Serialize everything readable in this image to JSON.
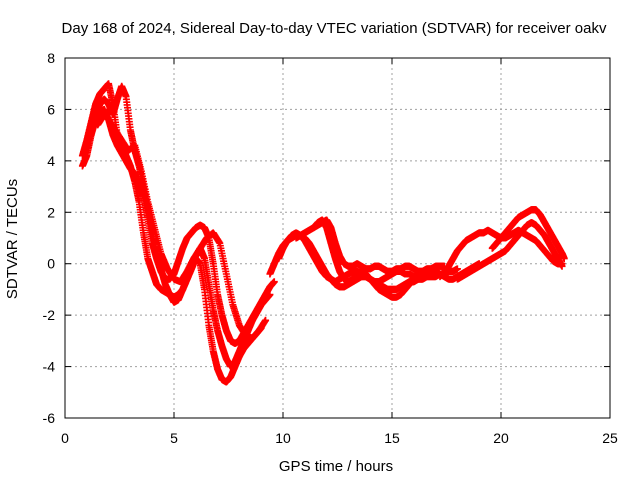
{
  "chart_data": {
    "type": "scatter",
    "title": "Day 168 of 2024, Sidereal Day-to-day VTEC variation (SDTVAR) for receiver oakv",
    "xlabel": "GPS time / hours",
    "ylabel": "SDTVAR / TECUs",
    "xlim": [
      0,
      25
    ],
    "ylim": [
      -6,
      8
    ],
    "xticks": [
      "0",
      "5",
      "10",
      "15",
      "20",
      "25"
    ],
    "yticks": [
      "-6",
      "-4",
      "-2",
      "0",
      "2",
      "4",
      "6",
      "8"
    ],
    "grid": true,
    "marker": "+",
    "color": "#ff0000",
    "series": [
      {
        "x": [
          0.8,
          1.0,
          1.2,
          1.4,
          1.6,
          1.8,
          2.0,
          2.2,
          2.4,
          2.6,
          2.8,
          3.0,
          3.2,
          3.4,
          3.6,
          3.8,
          4.0,
          4.2,
          4.4,
          4.6,
          4.8,
          5.0,
          5.2,
          5.4,
          5.6,
          5.8,
          6.0,
          6.2,
          6.4,
          6.6,
          6.8,
          7.0,
          7.2,
          7.4,
          7.6,
          7.8,
          8.0,
          8.2,
          8.4,
          8.6,
          8.8,
          9.0
        ],
        "y": [
          4.2,
          4.8,
          5.5,
          6.2,
          6.6,
          6.8,
          7.0,
          6.2,
          5.0,
          4.6,
          4.2,
          3.8,
          3.2,
          2.4,
          1.2,
          0.2,
          -0.3,
          -0.8,
          -1.0,
          -1.1,
          -1.2,
          -1.3,
          -1.2,
          -1.0,
          -0.6,
          -0.2,
          0.2,
          0.0,
          -1.0,
          -2.4,
          -3.4,
          -4.1,
          -4.5,
          -4.6,
          -4.4,
          -4.0,
          -3.6,
          -3.3,
          -3.1,
          -2.9,
          -2.7,
          -2.5
        ]
      },
      {
        "x": [
          0.8,
          1.0,
          1.2,
          1.4,
          1.6,
          1.8,
          2.0,
          2.2,
          2.4,
          2.6,
          2.8,
          3.0,
          3.2,
          3.4,
          3.6,
          3.8,
          4.0,
          4.2,
          4.4,
          4.6,
          4.8,
          5.0,
          5.2,
          5.4,
          5.6,
          5.8,
          6.0,
          6.2,
          6.4,
          6.6,
          6.8,
          7.0,
          7.2,
          7.4,
          7.6,
          7.8,
          8.0,
          8.2,
          8.4,
          8.6,
          8.8,
          9.0,
          9.2,
          9.4,
          9.6
        ],
        "y": [
          3.8,
          4.2,
          5.0,
          5.6,
          5.9,
          6.0,
          5.6,
          5.0,
          4.6,
          4.3,
          4.0,
          3.7,
          3.5,
          3.1,
          2.6,
          1.8,
          0.8,
          0.2,
          -0.3,
          -0.6,
          -0.6,
          -0.4,
          0.1,
          0.6,
          1.0,
          1.2,
          1.4,
          1.5,
          1.4,
          1.0,
          0.0,
          -1.2,
          -2.0,
          -2.6,
          -3.0,
          -3.1,
          -3.0,
          -2.7,
          -2.4,
          -2.1,
          -1.8,
          -1.5,
          -1.2,
          -0.9,
          -0.7
        ]
      },
      {
        "x": [
          1.0,
          1.2,
          1.4,
          1.6,
          1.8,
          2.0,
          2.2,
          2.4,
          2.6,
          2.8,
          3.0,
          3.2,
          3.4,
          3.6,
          3.8,
          4.0,
          4.2,
          4.4,
          4.6,
          4.8,
          5.0,
          5.2,
          5.4,
          5.6,
          5.8,
          6.0,
          6.2,
          6.4,
          6.6,
          6.8,
          7.0,
          7.2,
          7.4,
          7.6,
          7.8,
          8.0,
          8.2,
          8.4,
          8.6,
          8.8,
          9.0,
          9.2,
          9.4
        ],
        "y": [
          4.5,
          5.2,
          5.8,
          6.2,
          6.4,
          6.2,
          5.8,
          6.4,
          6.9,
          6.5,
          5.2,
          4.4,
          3.8,
          3.0,
          2.2,
          1.2,
          0.4,
          -0.2,
          -0.8,
          -1.2,
          -1.5,
          -1.4,
          -1.0,
          -0.6,
          -0.2,
          0.3,
          0.6,
          0.2,
          -0.8,
          -1.8,
          -2.6,
          -3.2,
          -3.7,
          -4.0,
          -3.8,
          -3.4,
          -3.0,
          -2.6,
          -2.2,
          -1.9,
          -1.6,
          -1.4,
          -1.2
        ]
      },
      {
        "x": [
          1.5,
          1.8,
          2.0,
          2.3,
          2.6,
          2.9,
          3.2,
          3.5,
          3.8,
          4.1,
          4.4,
          4.7,
          5.0,
          5.3,
          5.6,
          5.9,
          6.2,
          6.5,
          6.8,
          7.1,
          7.4,
          7.7,
          8.0,
          8.3,
          8.6,
          8.9,
          9.2
        ],
        "y": [
          5.4,
          5.8,
          5.6,
          5.2,
          4.8,
          4.4,
          4.6,
          3.6,
          2.4,
          1.4,
          0.4,
          -0.2,
          -0.6,
          -0.7,
          -0.3,
          0.2,
          0.6,
          1.0,
          1.2,
          0.8,
          -0.4,
          -1.6,
          -2.4,
          -2.8,
          -2.9,
          -2.6,
          -2.2
        ]
      },
      {
        "x": [
          9.4,
          9.6,
          9.8,
          10.0,
          10.2,
          10.4,
          10.6,
          10.8,
          11.0,
          11.2,
          11.4,
          11.6,
          11.8,
          12.0,
          12.2,
          12.4,
          12.6,
          12.8,
          13.0,
          13.2,
          13.4,
          13.6,
          13.8,
          14.0,
          14.2,
          14.4,
          14.6,
          14.8,
          15.0,
          15.2,
          15.4,
          15.6,
          15.8,
          16.0,
          16.2,
          16.4,
          16.6,
          16.8,
          17.0,
          17.2,
          17.4,
          17.6,
          17.8,
          18.0
        ],
        "y": [
          -0.4,
          0.0,
          0.4,
          0.7,
          0.9,
          1.0,
          1.1,
          1.1,
          1.0,
          0.8,
          0.5,
          0.2,
          -0.1,
          -0.4,
          -0.6,
          -0.8,
          -0.9,
          -0.9,
          -0.8,
          -0.7,
          -0.6,
          -0.5,
          -0.5,
          -0.6,
          -0.7,
          -0.8,
          -0.9,
          -1.0,
          -1.0,
          -1.0,
          -0.9,
          -0.8,
          -0.7,
          -0.7,
          -0.6,
          -0.6,
          -0.5,
          -0.5,
          -0.5,
          -0.4,
          -0.4,
          -0.3,
          -0.3,
          -0.2
        ]
      },
      {
        "x": [
          9.8,
          10.0,
          10.2,
          10.4,
          10.6,
          10.8,
          11.0,
          11.2,
          11.4,
          11.6,
          11.8,
          12.0,
          12.2,
          12.4,
          12.6,
          12.8,
          13.0,
          13.2,
          13.4,
          13.6,
          13.8,
          14.0,
          14.2,
          14.4,
          14.6,
          14.8,
          15.0,
          15.2,
          15.4,
          15.6,
          15.8,
          16.0,
          16.2,
          16.4,
          16.6,
          16.8,
          17.0,
          17.2,
          17.4,
          17.6,
          17.8,
          18.0,
          18.2,
          18.4,
          18.6,
          18.8,
          19.0
        ],
        "y": [
          0.2,
          0.6,
          0.9,
          1.1,
          1.2,
          1.1,
          0.9,
          0.6,
          0.3,
          0.0,
          -0.3,
          -0.5,
          -0.6,
          -0.7,
          -0.6,
          -0.5,
          -0.4,
          -0.3,
          -0.3,
          -0.4,
          -0.5,
          -0.6,
          -0.7,
          -0.7,
          -0.6,
          -0.5,
          -0.4,
          -0.3,
          -0.3,
          -0.4,
          -0.4,
          -0.5,
          -0.5,
          -0.4,
          -0.3,
          -0.3,
          -0.3,
          -0.4,
          -0.5,
          -0.6,
          -0.6,
          -0.5,
          -0.4,
          -0.3,
          -0.2,
          -0.1,
          0.0
        ]
      },
      {
        "x": [
          10.6,
          10.8,
          11.0,
          11.2,
          11.4,
          11.6,
          11.8,
          12.0,
          12.2,
          12.4,
          12.6,
          12.8,
          13.0,
          13.2,
          13.4,
          13.6,
          13.8,
          14.0,
          14.2,
          14.4,
          14.6,
          14.8,
          15.0,
          15.2,
          15.4,
          15.6,
          15.8,
          16.0,
          16.2,
          16.4,
          16.6,
          16.8,
          17.0,
          17.2,
          17.4
        ],
        "y": [
          1.0,
          1.1,
          1.2,
          1.3,
          1.4,
          1.5,
          1.6,
          1.7,
          1.4,
          0.8,
          0.3,
          0.0,
          -0.1,
          -0.1,
          0.0,
          -0.1,
          -0.2,
          -0.2,
          -0.1,
          -0.1,
          -0.2,
          -0.3,
          -0.3,
          -0.2,
          -0.2,
          -0.1,
          -0.1,
          -0.2,
          -0.3,
          -0.3,
          -0.2,
          -0.2,
          -0.1,
          -0.1,
          -0.1
        ]
      },
      {
        "x": [
          11.4,
          11.6,
          11.8,
          12.0,
          12.2,
          12.4,
          12.6,
          12.8,
          13.0,
          13.2,
          13.4,
          13.6,
          13.8,
          14.0,
          14.2,
          14.4,
          14.6,
          14.8,
          15.0,
          15.2,
          15.4,
          15.6,
          15.8,
          16.0,
          16.2,
          16.4
        ],
        "y": [
          1.4,
          1.6,
          1.7,
          1.4,
          0.8,
          0.2,
          -0.3,
          -0.6,
          -0.7,
          -0.6,
          -0.4,
          -0.3,
          -0.4,
          -0.6,
          -0.8,
          -1.0,
          -1.1,
          -1.2,
          -1.3,
          -1.3,
          -1.2,
          -1.0,
          -0.8,
          -0.6,
          -0.5,
          -0.5
        ]
      },
      {
        "x": [
          17.2,
          17.4,
          17.6,
          17.8,
          18.0,
          18.2,
          18.4,
          18.6,
          18.8,
          19.0,
          19.2,
          19.4,
          19.6,
          19.8,
          20.0,
          20.2,
          20.4,
          20.6,
          20.8,
          21.0,
          21.2,
          21.4,
          21.6,
          21.8,
          22.0,
          22.2,
          22.4,
          22.6,
          22.8
        ],
        "y": [
          -0.5,
          -0.3,
          -0.1,
          0.2,
          0.5,
          0.7,
          0.9,
          1.0,
          1.1,
          1.2,
          1.2,
          1.3,
          1.2,
          1.1,
          1.0,
          1.0,
          1.1,
          1.2,
          1.3,
          1.2,
          1.1,
          1.0,
          0.9,
          0.7,
          0.5,
          0.3,
          0.1,
          0.0,
          0.0
        ]
      },
      {
        "x": [
          18.0,
          18.2,
          18.4,
          18.6,
          18.8,
          19.0,
          19.2,
          19.4,
          19.6,
          19.8,
          20.0,
          20.2,
          20.4,
          20.6,
          20.8,
          21.0,
          21.2,
          21.4,
          21.6,
          21.8,
          22.0,
          22.2,
          22.4,
          22.6,
          22.8
        ],
        "y": [
          -0.6,
          -0.5,
          -0.4,
          -0.3,
          -0.2,
          -0.1,
          0.0,
          0.1,
          0.2,
          0.3,
          0.4,
          0.5,
          0.7,
          0.9,
          1.1,
          1.3,
          1.5,
          1.6,
          1.5,
          1.3,
          1.1,
          0.8,
          0.5,
          0.2,
          -0.1
        ]
      },
      {
        "x": [
          19.6,
          19.8,
          20.0,
          20.2,
          20.4,
          20.6,
          20.8,
          21.0,
          21.2,
          21.4,
          21.6,
          21.8,
          22.0,
          22.2,
          22.4,
          22.6,
          22.8,
          22.9
        ],
        "y": [
          0.6,
          0.8,
          1.0,
          1.2,
          1.4,
          1.6,
          1.8,
          1.9,
          2.0,
          2.1,
          2.1,
          1.9,
          1.6,
          1.3,
          1.0,
          0.7,
          0.4,
          0.2
        ]
      }
    ]
  }
}
